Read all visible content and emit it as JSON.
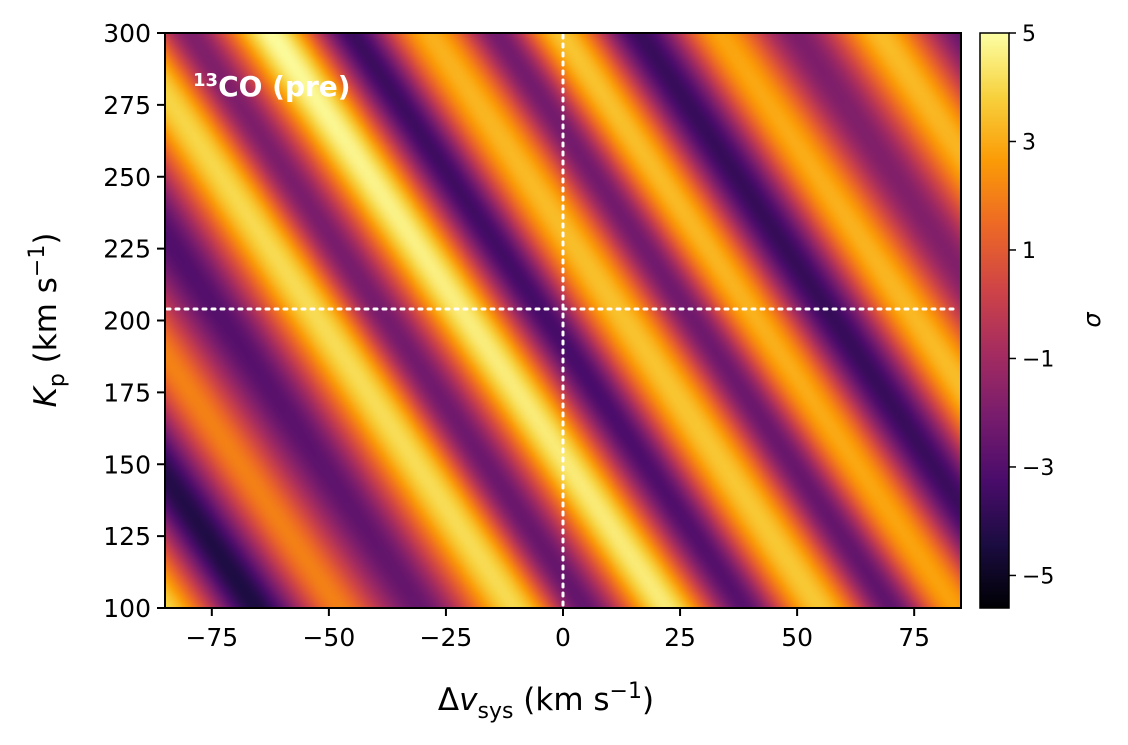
{
  "chart_data": {
    "type": "heatmap",
    "title": "",
    "annotation": {
      "sup": "13",
      "main": "CO (pre)"
    },
    "xlabel": {
      "base": "Δ",
      "var": "v",
      "sub": "sys",
      "units": " (km s",
      "exp": "−1",
      "close": ")"
    },
    "ylabel": {
      "var": "K",
      "sub": "p",
      "units": " (km s",
      "exp": "−1",
      "close": ")"
    },
    "xlim": [
      -85,
      85
    ],
    "ylim": [
      100,
      300
    ],
    "x_ticks": [
      -75,
      -50,
      -25,
      0,
      25,
      50,
      75
    ],
    "x_tick_labels": [
      "−75",
      "−50",
      "−25",
      "0",
      "25",
      "50",
      "75"
    ],
    "y_ticks": [
      100,
      125,
      150,
      175,
      200,
      225,
      250,
      275,
      300
    ],
    "y_tick_labels": [
      "100",
      "125",
      "150",
      "175",
      "200",
      "225",
      "250",
      "275",
      "300"
    ],
    "colorbar": {
      "label": "σ",
      "range": [
        -5.6,
        5
      ],
      "ticks": [
        -5,
        -3,
        -1,
        1,
        3,
        5
      ],
      "tick_labels": [
        "−5",
        "−3",
        "−1",
        "1",
        "3",
        "5"
      ],
      "colormap": "inferno"
    },
    "reference_lines": {
      "vsys": 0,
      "kp": 204
    },
    "reference_color": "#ffffff",
    "colormap_stops": [
      "#000004",
      "#1b0c41",
      "#4a0c6b",
      "#781c6d",
      "#a52c60",
      "#cf4446",
      "#ed6925",
      "#fb9b06",
      "#f7d13d",
      "#fcffa4"
    ],
    "bands": [
      {
        "k200": -165,
        "slope": 0.42,
        "amp": 2.6,
        "width": 7
      },
      {
        "k200": -148,
        "slope": 0.42,
        "amp": -2.5,
        "width": 6
      },
      {
        "k200": -128,
        "slope": 0.42,
        "amp": 3.2,
        "width": 6
      },
      {
        "k200": -108,
        "slope": 0.42,
        "amp": -4.6,
        "width": 6
      },
      {
        "k200": -90,
        "slope": 0.42,
        "amp": 2.4,
        "width": 5
      },
      {
        "k200": -72,
        "slope": 0.42,
        "amp": -3.0,
        "width": 6
      },
      {
        "k200": -52,
        "slope": 0.42,
        "amp": 3.3,
        "width": 6
      },
      {
        "k200": -38,
        "slope": 0.42,
        "amp": -3.0,
        "width": 5
      },
      {
        "k200": -20,
        "slope": 0.42,
        "amp": 4.8,
        "width": 6
      },
      {
        "k200": -3,
        "slope": 0.42,
        "amp": -3.5,
        "width": 5
      },
      {
        "k200": 13,
        "slope": 0.42,
        "amp": 2.8,
        "width": 6
      },
      {
        "k200": 28,
        "slope": 0.42,
        "amp": -3.4,
        "width": 5
      },
      {
        "k200": 42,
        "slope": 0.42,
        "amp": 3.2,
        "width": 6
      },
      {
        "k200": 58,
        "slope": 0.42,
        "amp": -3.6,
        "width": 6
      },
      {
        "k200": 75,
        "slope": 0.42,
        "amp": 3.0,
        "width": 6
      },
      {
        "k200": 92,
        "slope": 0.42,
        "amp": -2.8,
        "width": 6
      },
      {
        "k200": 110,
        "slope": 0.42,
        "amp": 2.8,
        "width": 6
      },
      {
        "k200": 128,
        "slope": 0.42,
        "amp": -2.5,
        "width": 6
      },
      {
        "k200": 146,
        "slope": 0.42,
        "amp": 2.6,
        "width": 6
      }
    ]
  }
}
